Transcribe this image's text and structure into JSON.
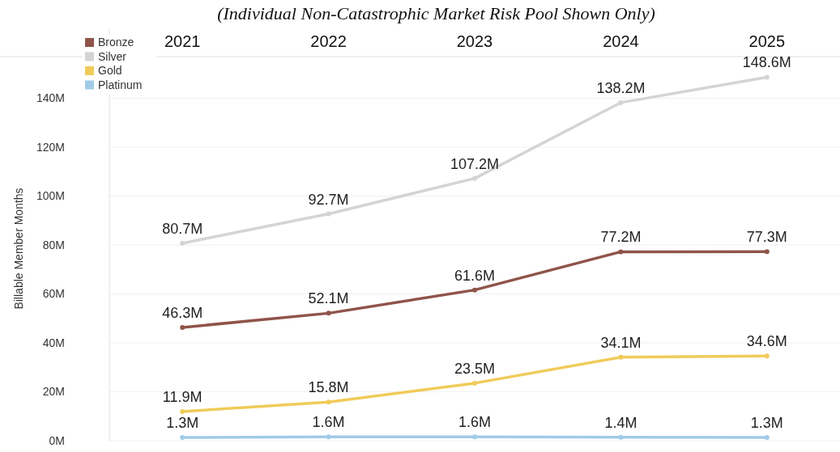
{
  "chart_data": {
    "type": "line",
    "subtitle": "(Individual Non-Catastrophic Market Risk Pool Shown Only)",
    "ylabel": "Billable Member Months",
    "categories": [
      "2021",
      "2022",
      "2023",
      "2024",
      "2025"
    ],
    "series": [
      {
        "name": "Bronze",
        "color": "#8f5449",
        "values": [
          46.3,
          52.1,
          61.6,
          77.2,
          77.3
        ],
        "value_labels": [
          "46.3M",
          "52.1M",
          "61.6M",
          "77.2M",
          "77.3M"
        ]
      },
      {
        "name": "Silver",
        "color": "#d4d4d4",
        "values": [
          80.7,
          92.7,
          107.2,
          138.2,
          148.6
        ],
        "value_labels": [
          "80.7M",
          "92.7M",
          "107.2M",
          "138.2M",
          "148.6M"
        ]
      },
      {
        "name": "Gold",
        "color": "#f0cb5a",
        "values": [
          11.9,
          15.8,
          23.5,
          34.1,
          34.6
        ],
        "value_labels": [
          "11.9M",
          "15.8M",
          "23.5M",
          "34.1M",
          "34.6M"
        ]
      },
      {
        "name": "Platinum",
        "color": "#a0cbe8",
        "values": [
          1.3,
          1.6,
          1.6,
          1.4,
          1.3
        ],
        "value_labels": [
          "1.3M",
          "1.6M",
          "1.6M",
          "1.4M",
          "1.3M"
        ]
      }
    ],
    "ylim": [
      0,
      157
    ],
    "yticks": [
      {
        "value": 0,
        "label": "0M"
      },
      {
        "value": 20,
        "label": "20M"
      },
      {
        "value": 40,
        "label": "40M"
      },
      {
        "value": 60,
        "label": "60M"
      },
      {
        "value": 80,
        "label": "80M"
      },
      {
        "value": 100,
        "label": "100M"
      },
      {
        "value": 120,
        "label": "120M"
      },
      {
        "value": 140,
        "label": "140M"
      }
    ],
    "grid": "y",
    "legend": "top left",
    "marker": "circle",
    "line_style": "solid"
  }
}
